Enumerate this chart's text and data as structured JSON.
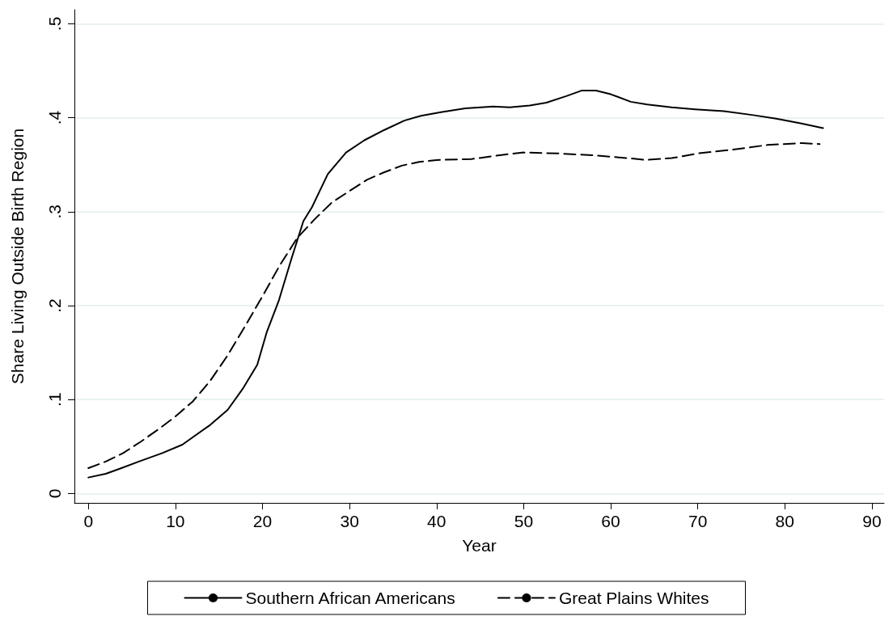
{
  "chart_data": {
    "type": "line",
    "xlabel": "Year",
    "ylabel": "Share Living Outside Birth Region",
    "xlim": [
      -1.6,
      91.4
    ],
    "xticks": [
      0,
      10,
      20,
      30,
      40,
      50,
      60,
      70,
      80,
      90
    ],
    "ylim": [
      -0.01,
      0.515
    ],
    "yticks": [
      0,
      {
        "value": 0.1,
        "label": ".1"
      },
      {
        "value": 0.2,
        "label": ".2"
      },
      {
        "value": 0.3,
        "label": ".3"
      },
      {
        "value": 0.4,
        "label": ".4"
      },
      {
        "value": 0.5,
        "label": ".5"
      }
    ],
    "grid": "y",
    "legend": "bottom",
    "marker": "none",
    "series": [
      {
        "name": "Southern African Americans",
        "color": "#000000",
        "line_style": "solid",
        "x": [
          0,
          2,
          3.8,
          5.8,
          8.5,
          10.8,
          14,
          16,
          17.7,
          19.4,
          20.5,
          21.9,
          23.3,
          24.7,
          25.7,
          27.5,
          29.6,
          31.7,
          34,
          36.3,
          38.2,
          40.5,
          43.3,
          46.5,
          48.4,
          50.7,
          52.6,
          54.9,
          56.7,
          58.3,
          60,
          62.3,
          64.2,
          67,
          69.7,
          73,
          76.2,
          79,
          81.8,
          84.4
        ],
        "values": [
          0.017,
          0.021,
          0.027,
          0.034,
          0.043,
          0.052,
          0.073,
          0.089,
          0.111,
          0.137,
          0.172,
          0.206,
          0.249,
          0.29,
          0.305,
          0.34,
          0.363,
          0.376,
          0.387,
          0.397,
          0.402,
          0.406,
          0.41,
          0.412,
          0.411,
          0.413,
          0.416,
          0.423,
          0.429,
          0.429,
          0.425,
          0.417,
          0.414,
          0.411,
          0.409,
          0.407,
          0.403,
          0.399,
          0.394,
          0.389
        ]
      },
      {
        "name": "Great Plains Whites",
        "color": "#000000",
        "line_style": "dashed",
        "x": [
          0,
          2,
          4,
          6,
          8,
          10,
          12,
          14,
          16,
          18,
          20,
          22,
          24,
          26,
          28,
          30,
          32,
          34,
          36,
          38,
          40,
          44,
          48,
          50,
          54,
          58,
          62,
          64,
          67,
          70,
          74,
          78,
          82,
          84
        ],
        "values": [
          0.027,
          0.034,
          0.043,
          0.055,
          0.068,
          0.082,
          0.098,
          0.12,
          0.147,
          0.178,
          0.21,
          0.243,
          0.272,
          0.292,
          0.31,
          0.322,
          0.334,
          0.342,
          0.349,
          0.353,
          0.355,
          0.356,
          0.361,
          0.363,
          0.362,
          0.36,
          0.357,
          0.355,
          0.357,
          0.362,
          0.366,
          0.371,
          0.373,
          0.372
        ]
      }
    ]
  }
}
